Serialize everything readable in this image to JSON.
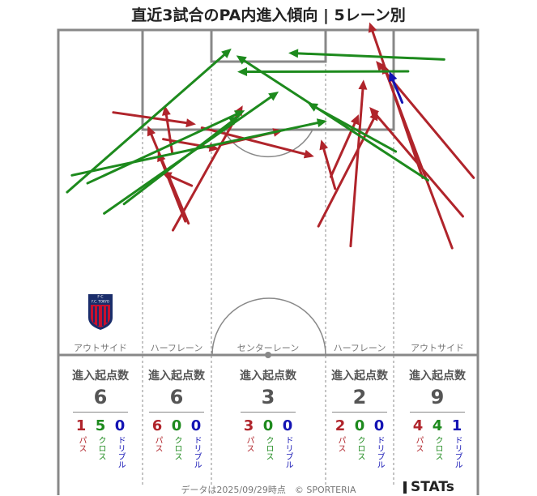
{
  "title": "直近3試合のPA内進入傾向 | 5レーン別",
  "colors": {
    "pass": "#b0242b",
    "cross": "#1d8a1d",
    "dribble": "#1414b4",
    "line": "#888888"
  },
  "lanes": [
    {
      "name": "アウトサイド",
      "header": "進入起点数",
      "total": "6",
      "pass": "1",
      "cross": "5",
      "dribble": "0"
    },
    {
      "name": "ハーフレーン",
      "header": "進入起点数",
      "total": "6",
      "pass": "6",
      "cross": "0",
      "dribble": "0"
    },
    {
      "name": "センターレーン",
      "header": "進入起点数",
      "total": "3",
      "pass": "3",
      "cross": "0",
      "dribble": "0"
    },
    {
      "name": "ハーフレーン",
      "header": "進入起点数",
      "total": "2",
      "pass": "2",
      "cross": "0",
      "dribble": "0"
    },
    {
      "name": "アウトサイド",
      "header": "進入起点数",
      "total": "9",
      "pass": "4",
      "cross": "4",
      "dribble": "1"
    }
  ],
  "labels": {
    "pass": "パス",
    "cross": "クロス",
    "dribble": "ドリブル"
  },
  "footer": {
    "date": "データは2025/09/29時点　© SPORTERIA",
    "brand": "STATs"
  },
  "crest": {
    "text": "F.C. TOKYO",
    "icon": "fc-tokyo-crest-icon"
  },
  "chart_data": {
    "type": "arrow-map",
    "title": "直近3試合のPA内進入傾向 | 5レーン別",
    "categories": [
      "パス",
      "クロス",
      "ドリブル"
    ],
    "series": [
      {
        "name": "パス",
        "values": [
          [
            0.211,
            0.227,
            0.365,
            0.251
          ],
          [
            0.357,
            0.375,
            0.301,
            0.348
          ],
          [
            0.345,
            0.447,
            0.294,
            0.306
          ],
          [
            0.304,
            0.281,
            0.408,
            0.301
          ],
          [
            0.322,
            0.465,
            0.452,
            0.213
          ],
          [
            0.376,
            0.258,
            0.585,
            0.316
          ],
          [
            0.409,
            0.293,
            0.527,
            0.263
          ],
          [
            0.321,
            0.31,
            0.307,
            0.213
          ],
          [
            0.351,
            0.451,
            0.275,
            0.254
          ],
          [
            0.593,
            0.457,
            0.704,
            0.223
          ],
          [
            0.653,
            0.497,
            0.677,
            0.161
          ],
          [
            0.624,
            0.381,
            0.598,
            0.282
          ],
          [
            0.616,
            0.357,
            0.668,
            0.231
          ],
          [
            0.862,
            0.437,
            0.688,
            0.216
          ],
          [
            0.882,
            0.359,
            0.7,
            0.123
          ],
          [
            0.842,
            0.501,
            0.713,
            0.129
          ],
          [
            0.787,
            0.359,
            0.688,
            0.045
          ]
        ]
      },
      {
        "name": "クロス",
        "values": [
          [
            0.125,
            0.388,
            0.431,
            0.098
          ],
          [
            0.163,
            0.37,
            0.456,
            0.223
          ],
          [
            0.194,
            0.431,
            0.519,
            0.185
          ],
          [
            0.231,
            0.412,
            0.445,
            0.234
          ],
          [
            0.134,
            0.354,
            0.609,
            0.244
          ],
          [
            0.797,
            0.364,
            0.44,
            0.112
          ],
          [
            0.737,
            0.306,
            0.573,
            0.208
          ],
          [
            0.827,
            0.12,
            0.537,
            0.107
          ],
          [
            0.76,
            0.144,
            0.442,
            0.145
          ]
        ]
      },
      {
        "name": "ドリブル",
        "values": [
          [
            0.749,
            0.207,
            0.725,
            0.144
          ]
        ]
      }
    ],
    "lane_totals": {
      "アウトサイド (左)": 6,
      "ハーフレーン (左)": 6,
      "センターレーン": 3,
      "ハーフレーン (右)": 2,
      "アウトサイド (右)": 9
    }
  }
}
